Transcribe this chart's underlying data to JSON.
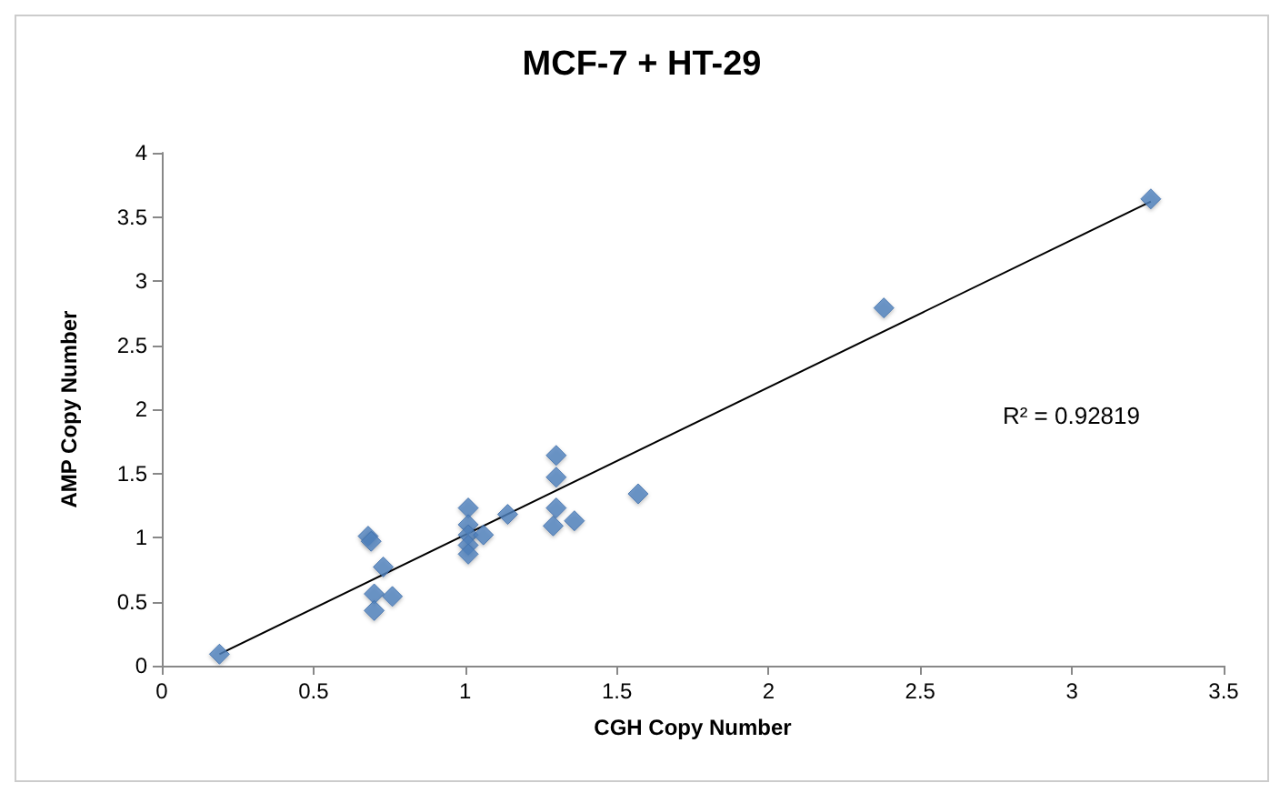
{
  "chart_data": {
    "type": "scatter",
    "title": "MCF-7 + HT-29",
    "xlabel": "CGH Copy Number",
    "ylabel": "AMP Copy Number",
    "grid": false,
    "xlim": [
      0,
      3.5
    ],
    "xticks": [
      0,
      0.5,
      1,
      1.5,
      2,
      2.5,
      3,
      3.5
    ],
    "ylim": [
      0,
      4
    ],
    "yticks": [
      0,
      0.5,
      1,
      1.5,
      2,
      2.5,
      3,
      3.5,
      4
    ],
    "series": [
      {
        "marker": "diamond",
        "color": "#4f81bd",
        "x": [
          0.19,
          0.68,
          0.69,
          0.73,
          0.7,
          0.76,
          0.7,
          1.01,
          1.01,
          1.01,
          1.01,
          1.01,
          1.06,
          1.14,
          1.3,
          1.3,
          1.3,
          1.29,
          1.36,
          1.57,
          2.38,
          3.26
        ],
        "values": [
          0.09,
          1.01,
          0.97,
          0.77,
          0.56,
          0.54,
          0.43,
          1.23,
          1.1,
          1.02,
          0.94,
          0.87,
          1.02,
          1.18,
          1.64,
          1.47,
          1.23,
          1.09,
          1.13,
          1.34,
          2.79,
          3.64
        ]
      },
      {
        "type": "line",
        "color": "#000000",
        "line_style": "solid",
        "x": [
          0.19,
          3.26
        ],
        "values": [
          0.09,
          3.62
        ]
      }
    ],
    "annotations": [
      "R² = 0.92819"
    ]
  }
}
